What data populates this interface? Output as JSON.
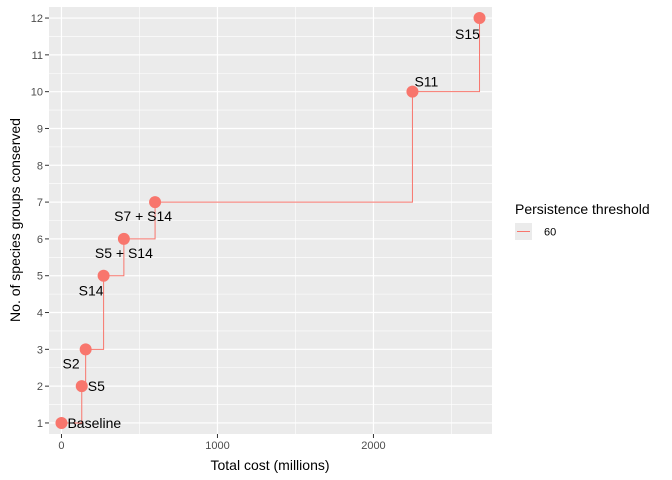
{
  "chart_data": {
    "type": "line",
    "xlabel": "Total cost (millions)",
    "ylabel": "No. of species groups conserved",
    "xlim": [
      -80,
      2760
    ],
    "ylim": [
      0.7,
      12.3
    ],
    "x_ticks": [
      0,
      1000,
      2000
    ],
    "x_minor_ticks": [
      500,
      1500,
      2500
    ],
    "y_ticks": [
      1,
      2,
      3,
      4,
      5,
      6,
      7,
      8,
      9,
      10,
      11,
      12
    ],
    "grid": true,
    "legend": {
      "title": "Persistence threshold",
      "position": "right",
      "entries": [
        "60"
      ]
    },
    "colors": {
      "series": "#F8766D",
      "panel": "#EBEBEB",
      "grid": "#FFFFFF"
    },
    "series": [
      {
        "name": "60",
        "step": "hv",
        "points": [
          {
            "x": 0,
            "y": 1,
            "label": "Baseline"
          },
          {
            "x": 130,
            "y": 2,
            "label": "S5"
          },
          {
            "x": 155,
            "y": 3,
            "label": "S2"
          },
          {
            "x": 270,
            "y": 5,
            "label": "S14"
          },
          {
            "x": 400,
            "y": 6,
            "label": "S5 + S14"
          },
          {
            "x": 600,
            "y": 7,
            "label": "S7 + S14"
          },
          {
            "x": 2250,
            "y": 10,
            "label": "S11"
          },
          {
            "x": 2680,
            "y": 12,
            "label": "S15"
          }
        ]
      }
    ]
  }
}
